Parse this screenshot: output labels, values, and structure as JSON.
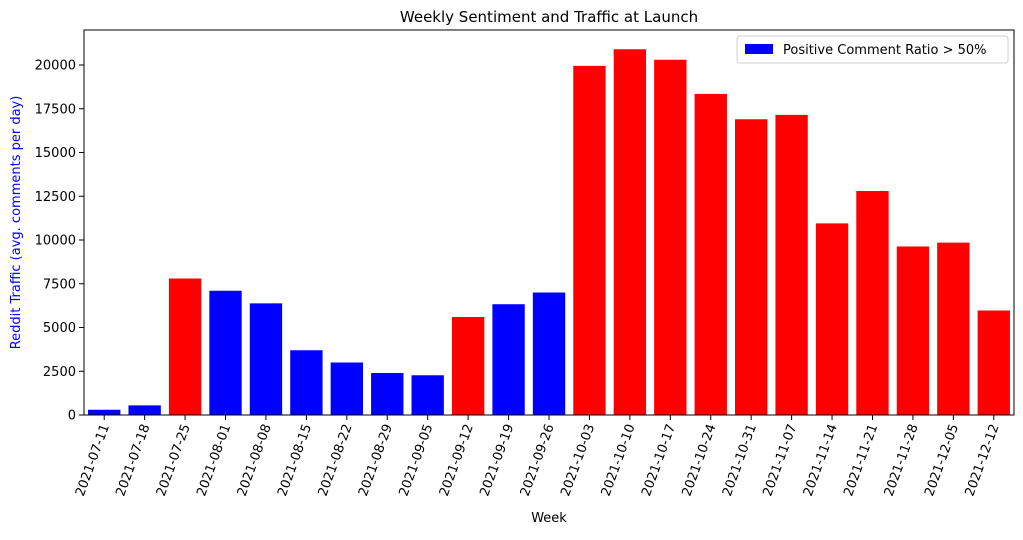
{
  "chart_data": {
    "type": "bar",
    "title": "Weekly Sentiment and Traffic at Launch",
    "xlabel": "Week",
    "ylabel": "Reddit Traffic (avg. comments per day)",
    "ylim": [
      0,
      22000
    ],
    "yticks": [
      0,
      2500,
      5000,
      7500,
      10000,
      12500,
      15000,
      17500,
      20000
    ],
    "grid": false,
    "legend": {
      "position": "top-right",
      "label": "Positive Comment Ratio > 50%",
      "color": "#0000ff"
    },
    "colors": {
      "positive": "#0000ff",
      "negative": "#ff0000",
      "ylabel": "#0000ff"
    },
    "categories": [
      "2021-07-11",
      "2021-07-18",
      "2021-07-25",
      "2021-08-01",
      "2021-08-08",
      "2021-08-15",
      "2021-08-22",
      "2021-08-29",
      "2021-09-05",
      "2021-09-12",
      "2021-09-19",
      "2021-09-26",
      "2021-10-03",
      "2021-10-10",
      "2021-10-17",
      "2021-10-24",
      "2021-10-31",
      "2021-11-07",
      "2021-11-14",
      "2021-11-21",
      "2021-11-28",
      "2021-12-05",
      "2021-12-12"
    ],
    "values": [
      300,
      550,
      7800,
      7100,
      6380,
      3700,
      3000,
      2400,
      2270,
      5600,
      6330,
      7000,
      19950,
      20900,
      20300,
      18350,
      16900,
      17150,
      10950,
      12800,
      9630,
      9850,
      5970
    ],
    "positive_ratio_above_50": [
      true,
      true,
      false,
      true,
      true,
      true,
      true,
      true,
      true,
      false,
      true,
      true,
      false,
      false,
      false,
      false,
      false,
      false,
      false,
      false,
      false,
      false,
      false
    ]
  }
}
